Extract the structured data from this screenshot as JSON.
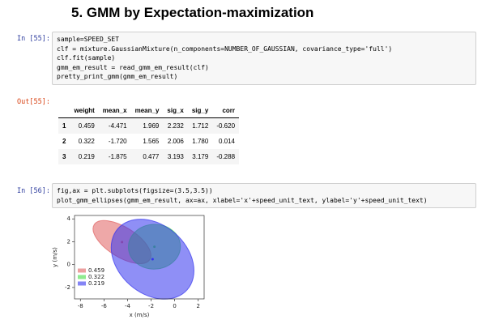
{
  "heading": "5. GMM by Expectation-maximization",
  "cells": [
    {
      "prompt": "In [55]:",
      "code": [
        "sample=SPEED_SET",
        "clf = mixture.GaussianMixture(n_components=NUMBER_OF_GAUSSIAN, covariance_type='full')",
        "clf.fit(sample)",
        "gmm_em_result = read_gmm_em_result(clf)",
        "pretty_print_gmm(gmm_em_result)"
      ]
    },
    {
      "prompt": "Out[55]:",
      "table": {
        "header": [
          "",
          "weight",
          "mean_x",
          "mean_y",
          "sig_x",
          "sig_y",
          "corr"
        ],
        "rows": [
          [
            "1",
            "0.459",
            "-4.471",
            "1.969",
            "2.232",
            "1.712",
            "-0.620"
          ],
          [
            "2",
            "0.322",
            "-1.720",
            "1.565",
            "2.006",
            "1.780",
            "0.014"
          ],
          [
            "3",
            "0.219",
            "-1.875",
            "0.477",
            "3.193",
            "3.179",
            "-0.288"
          ]
        ]
      }
    },
    {
      "prompt": "In [56]:",
      "code": [
        "fig,ax = plt.subplots(figsize=(3.5,3.5))",
        "plot_gmm_ellipses(gmm_em_result, ax=ax, xlabel='x'+speed_unit_text, ylabel='y'+speed_unit_text)"
      ]
    }
  ],
  "chart_data": {
    "type": "ellipse",
    "xlabel": "x (m/s)",
    "ylabel": "y (m/s)",
    "xlim": [
      -8.5,
      2.5
    ],
    "ylim": [
      -3,
      4.3
    ],
    "xticks": [
      -8,
      -6,
      -4,
      -2,
      0,
      2
    ],
    "yticks": [
      -2,
      0,
      2,
      4
    ],
    "series": [
      {
        "name": "0.459",
        "color": "#e06060",
        "x": -4.471,
        "y": 1.969,
        "sig_x": 2.232,
        "sig_y": 1.712,
        "corr": -0.62
      },
      {
        "name": "0.322",
        "color": "#44dd44",
        "x": -1.72,
        "y": 1.565,
        "sig_x": 2.006,
        "sig_y": 1.78,
        "corr": 0.014
      },
      {
        "name": "0.219",
        "color": "#3333ee",
        "x": -1.875,
        "y": 0.477,
        "sig_x": 3.193,
        "sig_y": 3.179,
        "corr": -0.288
      }
    ]
  }
}
